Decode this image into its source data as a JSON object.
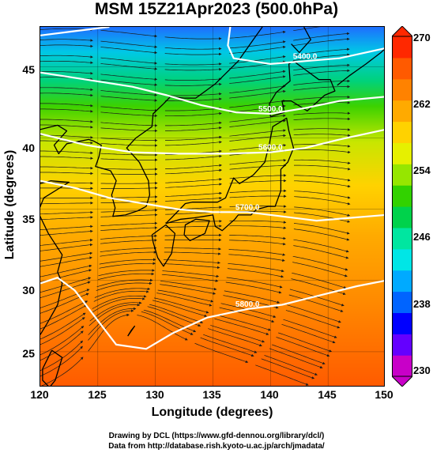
{
  "title": "MSM 15Z21Apr2023 (500.0hPa)",
  "map": {
    "lon_range": [
      120,
      150
    ],
    "lat_range": [
      22.5,
      47.8
    ],
    "lon_ticks": [
      "120",
      "125",
      "130",
      "135",
      "140",
      "145",
      "150"
    ],
    "lat_ticks": [
      "25",
      "30",
      "35",
      "40",
      "45"
    ],
    "xlabel": "Longitude (degrees)",
    "ylabel": "Latitude  (degrees)",
    "contour_labels": [
      "5400.0",
      "5500.0",
      "5600.0",
      "5700.0",
      "5800.0"
    ],
    "colors": {
      "coast": "#000000",
      "contour": "#ffffff",
      "streamline": "#1a1a1a"
    }
  },
  "colorbar": {
    "min": "230",
    "max": "270",
    "ticks": [
      "270",
      "262",
      "254",
      "246",
      "238",
      "230"
    ],
    "colors": [
      "#c800c8",
      "#6400ff",
      "#0000ff",
      "#0064ff",
      "#00aaff",
      "#00e6e6",
      "#00e6a0",
      "#00d24b",
      "#32d200",
      "#96e600",
      "#e6f000",
      "#ffd200",
      "#ffaa00",
      "#ff8200",
      "#ff5a00",
      "#ff2800"
    ]
  },
  "credits": {
    "line1": "Drawing by DCL (https://www.gfd-dennou.org/library/dcl/)",
    "line2": "Data from http://database.rish.kyoto-u.ac.jp/arch/jmadata/"
  }
}
